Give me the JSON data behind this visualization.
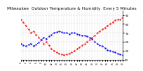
{
  "title": "Milwaukee  Outdoor Temperature & Humidity  Every 5 Minutes",
  "bg_color": "#ffffff",
  "grid_color": "#aaaaaa",
  "temp_color": "#ff0000",
  "humidity_color": "#0000ff",
  "temp_values": [
    85,
    82,
    78,
    74,
    70,
    72,
    68,
    65,
    62,
    58,
    60,
    56,
    52,
    50,
    48,
    47,
    46,
    45,
    46,
    47,
    48,
    50,
    52,
    54,
    56,
    58,
    60,
    62,
    65,
    67,
    70,
    72,
    74,
    76,
    78,
    80,
    82,
    84,
    85,
    85,
    87
  ],
  "humidity_values": [
    58,
    56,
    55,
    57,
    58,
    55,
    57,
    59,
    62,
    65,
    63,
    66,
    68,
    70,
    71,
    72,
    71,
    70,
    70,
    69,
    70,
    70,
    69,
    68,
    67,
    67,
    66,
    65,
    63,
    60,
    58,
    56,
    55,
    53,
    51,
    50,
    49,
    48,
    47,
    46,
    45
  ],
  "ymin": 40,
  "ymax": 95,
  "yticks": [
    40,
    50,
    60,
    70,
    80,
    90
  ],
  "ytick_labels": [
    "40",
    "50",
    "60",
    "70",
    "80",
    "90"
  ],
  "title_fontsize": 4.2,
  "tick_fontsize": 3.0,
  "linewidth": 0.7,
  "markersize": 1.3
}
